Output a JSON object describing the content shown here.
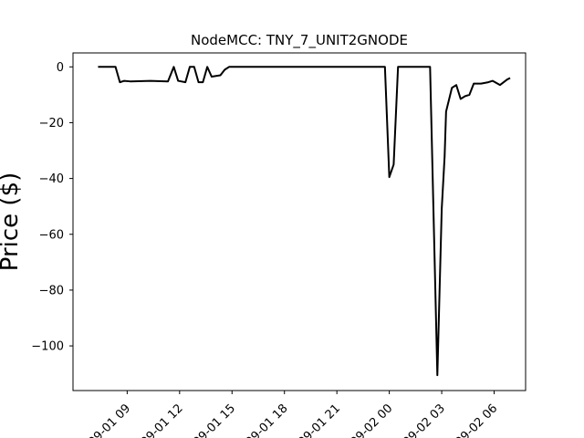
{
  "chart_data": {
    "type": "line",
    "title": "NodeMCC: TNY_7_UNIT2GNODE",
    "xlabel": "",
    "ylabel": "Price ($)",
    "x_ticks": [
      "09-01 09",
      "09-01 12",
      "09-01 15",
      "09-01 18",
      "09-01 21",
      "09-02 00",
      "09-02 03",
      "09-02 06"
    ],
    "y_ticks": [
      "0",
      "−20",
      "−40",
      "−60",
      "−80",
      "−100"
    ],
    "ylim": [
      -116,
      5
    ],
    "xlim_hours": [
      5.9,
      31.8
    ],
    "line_color": "#000000",
    "series": [
      {
        "name": "",
        "points": [
          {
            "x": "2020-09-01 07:20",
            "y": 0
          },
          {
            "x": "2020-09-01 08:20",
            "y": 0
          },
          {
            "x": "2020-09-01 08:35",
            "y": -5.5
          },
          {
            "x": "2020-09-01 08:50",
            "y": -5
          },
          {
            "x": "2020-09-01 09:10",
            "y": -5.2
          },
          {
            "x": "2020-09-01 10:20",
            "y": -5
          },
          {
            "x": "2020-09-01 11:20",
            "y": -5.2
          },
          {
            "x": "2020-09-01 11:40",
            "y": 0
          },
          {
            "x": "2020-09-01 11:55",
            "y": -5
          },
          {
            "x": "2020-09-01 12:20",
            "y": -5.5
          },
          {
            "x": "2020-09-01 12:35",
            "y": 0
          },
          {
            "x": "2020-09-01 12:50",
            "y": 0
          },
          {
            "x": "2020-09-01 13:05",
            "y": -5.5
          },
          {
            "x": "2020-09-01 13:20",
            "y": -5.5
          },
          {
            "x": "2020-09-01 13:35",
            "y": 0
          },
          {
            "x": "2020-09-01 13:50",
            "y": -3.5
          },
          {
            "x": "2020-09-01 14:20",
            "y": -3
          },
          {
            "x": "2020-09-01 14:35",
            "y": -1
          },
          {
            "x": "2020-09-01 14:50",
            "y": 0
          },
          {
            "x": "2020-09-01 23:45",
            "y": 0
          },
          {
            "x": "2020-09-02 00:00",
            "y": -39.5
          },
          {
            "x": "2020-09-02 00:15",
            "y": -35
          },
          {
            "x": "2020-09-02 00:30",
            "y": 0
          },
          {
            "x": "2020-09-02 02:20",
            "y": 0
          },
          {
            "x": "2020-09-02 02:45",
            "y": -110.5
          },
          {
            "x": "2020-09-02 03:00",
            "y": -51
          },
          {
            "x": "2020-09-02 03:10",
            "y": -32
          },
          {
            "x": "2020-09-02 03:15",
            "y": -16
          },
          {
            "x": "2020-09-02 03:35",
            "y": -7.5
          },
          {
            "x": "2020-09-02 03:50",
            "y": -6.5
          },
          {
            "x": "2020-09-02 04:05",
            "y": -11.5
          },
          {
            "x": "2020-09-02 04:20",
            "y": -10.5
          },
          {
            "x": "2020-09-02 04:35",
            "y": -10
          },
          {
            "x": "2020-09-02 04:50",
            "y": -6
          },
          {
            "x": "2020-09-02 05:15",
            "y": -6
          },
          {
            "x": "2020-09-02 05:40",
            "y": -5.5
          },
          {
            "x": "2020-09-02 05:55",
            "y": -5
          },
          {
            "x": "2020-09-02 06:20",
            "y": -6.5
          },
          {
            "x": "2020-09-02 06:45",
            "y": -4.5
          },
          {
            "x": "2020-09-02 06:55",
            "y": -4
          }
        ]
      }
    ]
  }
}
